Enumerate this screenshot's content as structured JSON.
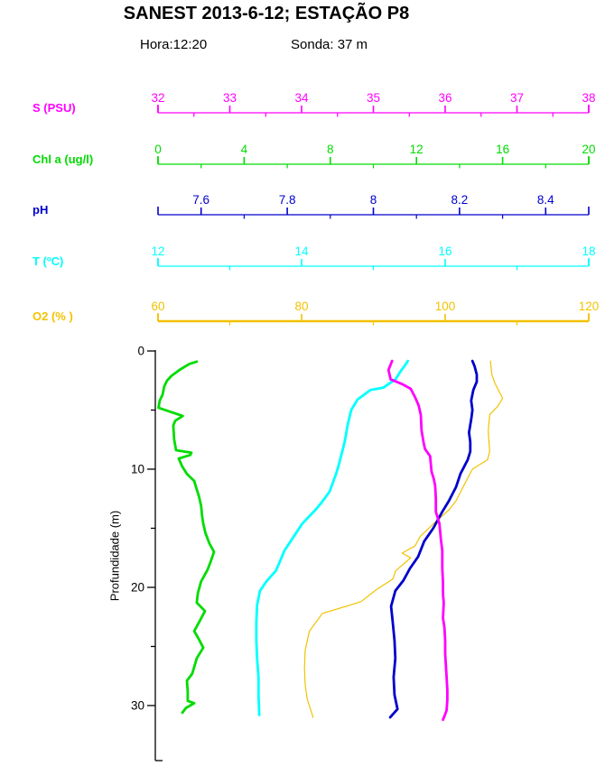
{
  "chart_data": {
    "type": "line",
    "title": "SANEST 2013-6-12; ESTAÇÃO P8",
    "subtitle_left": "Hora:12:20",
    "subtitle_right": "Sonda: 37 m",
    "ylabel": "Profundidade (m)",
    "grid": false,
    "depth_axis": {
      "label": "Profundidade (m)",
      "min": 0,
      "max": 34.7,
      "majors": [
        0,
        10,
        20,
        30
      ],
      "minor_step": 5,
      "color": "#000000"
    },
    "axes": [
      {
        "id": "salinity",
        "label": "S (PSU)",
        "color": "#FF00FF",
        "min": 32,
        "max": 38,
        "majors": [
          32,
          33,
          34,
          35,
          36,
          37,
          38
        ],
        "minor_step": 0.5
      },
      {
        "id": "chl",
        "label": "Chl a (ug/l)",
        "color": "#00DC00",
        "min": 0,
        "max": 20,
        "majors": [
          0,
          4,
          8,
          12,
          16,
          20
        ],
        "minor_step": 2
      },
      {
        "id": "ph",
        "label": "pH",
        "color": "#0000CC",
        "min": 7.5,
        "max": 8.5,
        "majors": [
          7.6,
          7.8,
          8,
          8.2,
          8.4
        ],
        "minor_step": 0.1
      },
      {
        "id": "temp",
        "label": "T (ºC)",
        "color": "#00FFFF",
        "min": 12,
        "max": 18,
        "majors": [
          12,
          14,
          16,
          18
        ],
        "minor_step": 1
      },
      {
        "id": "o2",
        "label": "O2 (% )",
        "color": "#F2C200",
        "min": 60,
        "max": 120,
        "majors": [
          60,
          80,
          100,
          120
        ],
        "minor_step": 10
      }
    ],
    "series": [
      {
        "name": "O2 (%)",
        "axis": "o2",
        "color": "#F2C200",
        "width": 1.2,
        "points": [
          [
            106.3,
            0.85
          ],
          [
            106.5,
            2.0
          ],
          [
            106.9,
            2.7
          ],
          [
            108.0,
            4.0
          ],
          [
            107.3,
            4.7
          ],
          [
            106.2,
            5.4
          ],
          [
            106.0,
            6.8
          ],
          [
            106.2,
            8.5
          ],
          [
            105.9,
            9.2
          ],
          [
            103.8,
            10.0
          ],
          [
            102.5,
            11.5
          ],
          [
            101.5,
            12.7
          ],
          [
            100.6,
            13.4
          ],
          [
            98.4,
            14.6
          ],
          [
            96.5,
            15.7
          ],
          [
            95.8,
            16.5
          ],
          [
            94.0,
            17.1
          ],
          [
            95.2,
            17.5
          ],
          [
            93.1,
            18.6
          ],
          [
            92.7,
            19.3
          ],
          [
            90.4,
            20.2
          ],
          [
            88.3,
            21.2
          ],
          [
            86.8,
            21.5
          ],
          [
            82.9,
            22.2
          ],
          [
            81.1,
            23.7
          ],
          [
            80.5,
            25.3
          ],
          [
            80.4,
            26.8
          ],
          [
            80.5,
            28.3
          ],
          [
            80.8,
            29.5
          ],
          [
            81.4,
            30.6
          ],
          [
            81.6,
            31.0
          ]
        ]
      },
      {
        "name": "T (ºC)",
        "axis": "temp",
        "color": "#00FFFF",
        "width": 2.8,
        "points": [
          [
            15.48,
            0.85
          ],
          [
            15.43,
            1.3
          ],
          [
            15.37,
            1.8
          ],
          [
            15.31,
            2.4
          ],
          [
            15.21,
            2.8
          ],
          [
            15.14,
            3.1
          ],
          [
            14.96,
            3.3
          ],
          [
            14.78,
            4.1
          ],
          [
            14.69,
            5.0
          ],
          [
            14.64,
            6.3
          ],
          [
            14.6,
            7.7
          ],
          [
            14.55,
            8.9
          ],
          [
            14.52,
            9.6
          ],
          [
            14.48,
            10.4
          ],
          [
            14.39,
            11.9
          ],
          [
            14.28,
            12.8
          ],
          [
            14.2,
            13.4
          ],
          [
            14.01,
            14.6
          ],
          [
            13.89,
            15.7
          ],
          [
            13.76,
            16.9
          ],
          [
            13.7,
            17.8
          ],
          [
            13.64,
            18.6
          ],
          [
            13.51,
            19.5
          ],
          [
            13.42,
            20.3
          ],
          [
            13.38,
            21.5
          ],
          [
            13.37,
            23.0
          ],
          [
            13.37,
            24.5
          ],
          [
            13.38,
            26.0
          ],
          [
            13.4,
            27.6
          ],
          [
            13.4,
            29.1
          ],
          [
            13.41,
            30.8
          ]
        ]
      },
      {
        "name": "pH",
        "axis": "ph",
        "color": "#0000CC",
        "width": 2.8,
        "points": [
          [
            8.23,
            0.85
          ],
          [
            8.235,
            1.3
          ],
          [
            8.24,
            2.0
          ],
          [
            8.24,
            2.6
          ],
          [
            8.232,
            3.3
          ],
          [
            8.227,
            4.2
          ],
          [
            8.23,
            5.0
          ],
          [
            8.227,
            5.8
          ],
          [
            8.222,
            6.9
          ],
          [
            8.225,
            7.7
          ],
          [
            8.225,
            8.5
          ],
          [
            8.219,
            9.2
          ],
          [
            8.202,
            10.4
          ],
          [
            8.192,
            11.5
          ],
          [
            8.175,
            12.7
          ],
          [
            8.16,
            13.6
          ],
          [
            8.139,
            15.0
          ],
          [
            8.118,
            16.1
          ],
          [
            8.104,
            17.4
          ],
          [
            8.085,
            18.4
          ],
          [
            8.07,
            19.4
          ],
          [
            8.051,
            20.3
          ],
          [
            8.041,
            21.6
          ],
          [
            8.045,
            23.0
          ],
          [
            8.049,
            24.5
          ],
          [
            8.051,
            26.0
          ],
          [
            8.047,
            27.6
          ],
          [
            8.049,
            29.1
          ],
          [
            8.056,
            30.3
          ],
          [
            8.039,
            31.0
          ]
        ]
      },
      {
        "name": "Chl a (ug/l)",
        "axis": "chl",
        "color": "#00DC00",
        "width": 2.8,
        "points": [
          [
            1.8,
            0.9
          ],
          [
            1.45,
            1.1
          ],
          [
            1.0,
            1.6
          ],
          [
            0.63,
            2.1
          ],
          [
            0.42,
            2.5
          ],
          [
            0.29,
            3.0
          ],
          [
            0.21,
            3.7
          ],
          [
            0.08,
            4.2
          ],
          [
            0.02,
            4.8
          ],
          [
            1.15,
            5.5
          ],
          [
            0.8,
            5.9
          ],
          [
            0.71,
            6.3
          ],
          [
            0.75,
            7.5
          ],
          [
            0.84,
            8.4
          ],
          [
            1.55,
            8.6
          ],
          [
            1.5,
            8.8
          ],
          [
            0.96,
            9.1
          ],
          [
            1.13,
            9.8
          ],
          [
            1.34,
            10.4
          ],
          [
            1.68,
            11.0
          ],
          [
            1.76,
            11.5
          ],
          [
            1.9,
            12.3
          ],
          [
            2.0,
            13.1
          ],
          [
            2.05,
            14.0
          ],
          [
            2.1,
            14.6
          ],
          [
            2.2,
            15.4
          ],
          [
            2.39,
            16.3
          ],
          [
            2.6,
            17.0
          ],
          [
            2.45,
            17.8
          ],
          [
            2.3,
            18.5
          ],
          [
            2.0,
            19.5
          ],
          [
            1.85,
            20.5
          ],
          [
            1.8,
            21.3
          ],
          [
            2.18,
            22.0
          ],
          [
            1.95,
            22.8
          ],
          [
            1.68,
            23.7
          ],
          [
            1.9,
            24.4
          ],
          [
            2.1,
            25.1
          ],
          [
            1.8,
            26.0
          ],
          [
            1.59,
            27.3
          ],
          [
            1.34,
            27.9
          ],
          [
            1.38,
            28.8
          ],
          [
            1.38,
            29.6
          ],
          [
            1.68,
            29.8
          ],
          [
            1.3,
            30.2
          ],
          [
            1.13,
            30.6
          ]
        ]
      },
      {
        "name": "S (PSU)",
        "axis": "salinity",
        "color": "#FF00FF",
        "width": 2.8,
        "points": [
          [
            35.26,
            0.85
          ],
          [
            35.21,
            1.6
          ],
          [
            35.24,
            2.4
          ],
          [
            35.4,
            2.8
          ],
          [
            35.52,
            3.2
          ],
          [
            35.58,
            3.9
          ],
          [
            35.63,
            4.6
          ],
          [
            35.66,
            5.4
          ],
          [
            35.67,
            6.7
          ],
          [
            35.7,
            7.8
          ],
          [
            35.72,
            8.3
          ],
          [
            35.79,
            8.9
          ],
          [
            35.81,
            10.2
          ],
          [
            35.84,
            10.8
          ],
          [
            35.86,
            11.4
          ],
          [
            35.87,
            12.5
          ],
          [
            35.87,
            13.6
          ],
          [
            35.92,
            14.6
          ],
          [
            35.94,
            15.9
          ],
          [
            35.96,
            16.9
          ],
          [
            35.96,
            18.4
          ],
          [
            35.97,
            19.6
          ],
          [
            35.97,
            20.6
          ],
          [
            35.98,
            21.3
          ],
          [
            35.97,
            22.6
          ],
          [
            35.99,
            23.4
          ],
          [
            36.0,
            24.5
          ],
          [
            36.0,
            25.6
          ],
          [
            36.01,
            26.6
          ],
          [
            36.02,
            27.6
          ],
          [
            36.03,
            28.7
          ],
          [
            36.03,
            29.5
          ],
          [
            36.02,
            30.4
          ],
          [
            35.99,
            30.9
          ],
          [
            35.97,
            31.2
          ]
        ]
      }
    ]
  }
}
